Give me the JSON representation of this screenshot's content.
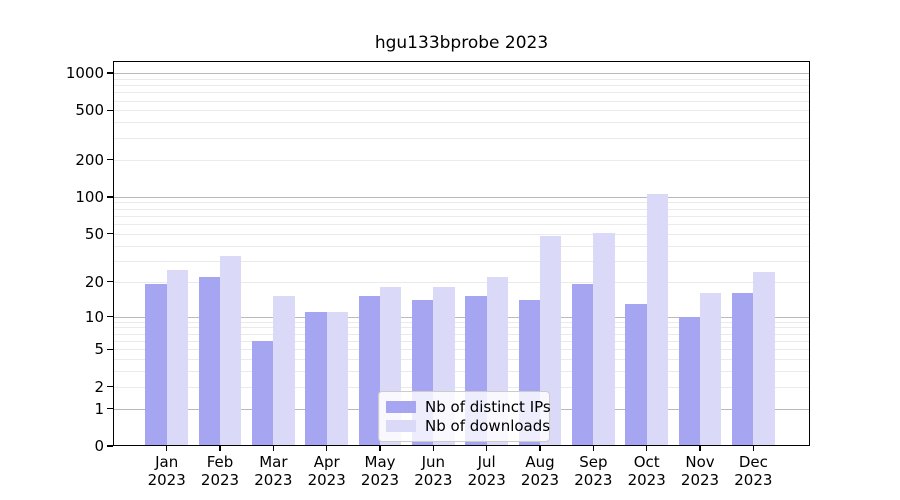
{
  "chart_data": {
    "type": "bar",
    "title": "hgu133bprobe 2023",
    "categories": [
      "Jan",
      "Feb",
      "Mar",
      "Apr",
      "May",
      "Jun",
      "Jul",
      "Aug",
      "Sep",
      "Oct",
      "Nov",
      "Dec"
    ],
    "year_label": "2023",
    "series": [
      {
        "name": "Nb of distinct IPs",
        "color": "#a5a5f2",
        "values": [
          19,
          22,
          6,
          11,
          15,
          14,
          15,
          14,
          19,
          13,
          10,
          16
        ]
      },
      {
        "name": "Nb of downloads",
        "color": "#dadaf8",
        "values": [
          25,
          33,
          15,
          11,
          18,
          18,
          22,
          48,
          51,
          106,
          16,
          24
        ]
      }
    ],
    "yscale": "log1p",
    "yticks": [
      0,
      1,
      2,
      5,
      10,
      20,
      50,
      100,
      200,
      500,
      1000
    ],
    "ylim": [
      0,
      1250
    ],
    "grid": "on",
    "legend_position": "bottom-center",
    "colors": {
      "major_grid": "#b9b9b9",
      "minor_grid": "#eaeaea",
      "axis": "#000000",
      "text": "#000000",
      "legend_border": "#cccccc"
    }
  }
}
